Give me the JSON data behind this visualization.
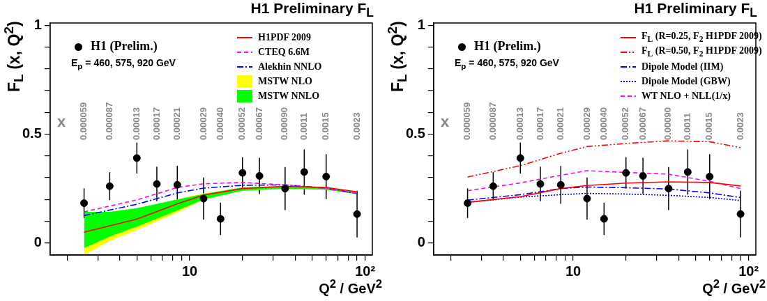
{
  "chart_data": [
    {
      "type": "line",
      "title": "H1 Preliminary F$_{L}$",
      "xlabel": "Q$^{2}$ / GeV$^{2}$",
      "ylabel": "F$_{L}$ (x, Q$^{2}$)",
      "log": "x",
      "legend": "top right",
      "xlim": [
        1.6,
        110
      ],
      "ylim": [
        -0.055,
        1.01
      ],
      "xticks": [
        {
          "value": 2,
          "label": null
        },
        {
          "value": 3,
          "label": null
        },
        {
          "value": 4,
          "label": null
        },
        {
          "value": 5,
          "label": null
        },
        {
          "value": 6,
          "label": null
        },
        {
          "value": 7,
          "label": null
        },
        {
          "value": 8,
          "label": null
        },
        {
          "value": 9,
          "label": null
        },
        10,
        {
          "value": 20,
          "label": null
        },
        {
          "value": 30,
          "label": null
        },
        {
          "value": 40,
          "label": null
        },
        {
          "value": 50,
          "label": null
        },
        {
          "value": 60,
          "label": null
        },
        {
          "value": 70,
          "label": null
        },
        {
          "value": 80,
          "label": null
        },
        {
          "value": 90,
          "label": null
        },
        {
          "value": 100,
          "label": "10²"
        }
      ],
      "yticks": [
        0,
        {
          "value": 0.1,
          "label": null
        },
        {
          "value": 0.2,
          "label": null
        },
        {
          "value": 0.3,
          "label": null
        },
        {
          "value": 0.4,
          "label": null
        },
        0.5,
        {
          "value": 0.6,
          "label": null
        },
        {
          "value": 0.7,
          "label": null
        },
        {
          "value": 0.8,
          "label": null
        },
        {
          "value": 0.9,
          "label": null
        },
        1
      ],
      "series": [
        {
          "name": "H1 (Prelim.)",
          "type": "scatter",
          "marker": "circle",
          "color": "#000000",
          "x": [
            2.5,
            3.5,
            5,
            6.5,
            8.5,
            12,
            15,
            20,
            25,
            35,
            45,
            60,
            90
          ],
          "values": [
            0.183,
            0.261,
            0.39,
            0.271,
            0.267,
            0.204,
            0.111,
            0.322,
            0.308,
            0.25,
            0.326,
            0.305,
            0.133
          ],
          "errors": [
            0.068,
            0.064,
            0.071,
            0.079,
            0.087,
            0.097,
            0.074,
            0.072,
            0.083,
            0.099,
            0.104,
            0.103,
            0.107
          ]
        },
        {
          "name": "H1PDF 2009",
          "type": "line",
          "line_style": "solid",
          "color": "#ff0000",
          "x": [
            2.5,
            5,
            8.5,
            12,
            20,
            35,
            60,
            90
          ],
          "values": [
            0.05,
            0.11,
            0.18,
            0.22,
            0.25,
            0.26,
            0.255,
            0.235
          ]
        },
        {
          "name": "CTEQ 6.6M",
          "type": "line",
          "line_style": "dashed",
          "color": "#ff00ff",
          "x": [
            2.5,
            5,
            8.5,
            12,
            20,
            35,
            60,
            90
          ],
          "values": [
            0.143,
            0.198,
            0.255,
            0.272,
            0.278,
            0.267,
            0.25,
            0.228
          ]
        },
        {
          "name": "Alekhin NNLO",
          "type": "line",
          "line_style": "dashdot",
          "color": "#0000ff",
          "x": [
            2.5,
            5,
            8.5,
            12,
            20,
            35,
            60,
            90
          ],
          "values": [
            0.126,
            0.178,
            0.23,
            0.252,
            0.265,
            0.267,
            0.252,
            0.227
          ]
        },
        {
          "name": "MSTW NLO",
          "type": "area",
          "color": "#ffff00",
          "x": [
            2.5,
            3.5,
            5,
            8.5,
            12,
            20,
            35,
            60,
            90
          ],
          "lower": [
            -0.055,
            0.01,
            0.06,
            0.14,
            0.2,
            0.24,
            0.25,
            0.245,
            0.225
          ],
          "upper": [
            -0.024,
            0.03,
            0.075,
            0.2,
            0.228,
            0.255,
            0.263,
            0.256,
            0.237
          ],
          "values": [
            null,
            null,
            null,
            null,
            null,
            null,
            null,
            null,
            null
          ]
        },
        {
          "name": "MSTW NNLO",
          "type": "area",
          "color": "#00ff00",
          "x": [
            2.5,
            3.5,
            5,
            8.5,
            12,
            20,
            35,
            60,
            90
          ],
          "lower": [
            -0.024,
            0.03,
            0.075,
            0.15,
            0.2,
            0.24,
            0.25,
            0.245,
            0.225
          ],
          "upper": [
            0.143,
            0.143,
            0.16,
            0.2,
            0.225,
            0.255,
            0.262,
            0.255,
            0.235
          ],
          "values": [
            null,
            null,
            null,
            null,
            null,
            null,
            null,
            null,
            null
          ]
        }
      ],
      "annotations": [
        "x",
        "E$_{p}$ = 460, 575, 920 GeV",
        "0.000059",
        "0.000087",
        "0.00013",
        "0.00017",
        "0.00021",
        "0.00029",
        "0.00040",
        "0.00052",
        "0.00067",
        "0.00090",
        "0.0011",
        "0.0015",
        "0.0023"
      ]
    },
    {
      "type": "line",
      "title": "H1 Preliminary F$_{L}$",
      "xlabel": "Q$^{2}$ / GeV$^{2}$",
      "ylabel": "F$_{L}$ (x, Q$^{2}$)",
      "log": "x",
      "legend": "top right",
      "xlim": [
        1.6,
        110
      ],
      "ylim": [
        -0.055,
        1.01
      ],
      "xticks": [
        {
          "value": 2,
          "label": null
        },
        {
          "value": 3,
          "label": null
        },
        {
          "value": 4,
          "label": null
        },
        {
          "value": 5,
          "label": null
        },
        {
          "value": 6,
          "label": null
        },
        {
          "value": 7,
          "label": null
        },
        {
          "value": 8,
          "label": null
        },
        {
          "value": 9,
          "label": null
        },
        10,
        {
          "value": 20,
          "label": null
        },
        {
          "value": 30,
          "label": null
        },
        {
          "value": 40,
          "label": null
        },
        {
          "value": 50,
          "label": null
        },
        {
          "value": 60,
          "label": null
        },
        {
          "value": 70,
          "label": null
        },
        {
          "value": 80,
          "label": null
        },
        {
          "value": 90,
          "label": null
        },
        {
          "value": 100,
          "label": "10²"
        }
      ],
      "yticks": [
        0,
        {
          "value": 0.1,
          "label": null
        },
        {
          "value": 0.2,
          "label": null
        },
        {
          "value": 0.3,
          "label": null
        },
        {
          "value": 0.4,
          "label": null
        },
        0.5,
        {
          "value": 0.6,
          "label": null
        },
        {
          "value": 0.7,
          "label": null
        },
        {
          "value": 0.8,
          "label": null
        },
        {
          "value": 0.9,
          "label": null
        },
        1
      ],
      "series": [
        {
          "name": "H1 (Prelim.)",
          "type": "scatter",
          "marker": "circle",
          "color": "#000000",
          "x": [
            2.5,
            3.5,
            5,
            6.5,
            8.5,
            12,
            15,
            20,
            25,
            35,
            45,
            60,
            90
          ],
          "values": [
            0.183,
            0.261,
            0.39,
            0.271,
            0.267,
            0.204,
            0.111,
            0.322,
            0.308,
            0.25,
            0.326,
            0.305,
            0.133
          ],
          "errors": [
            0.068,
            0.064,
            0.071,
            0.079,
            0.087,
            0.097,
            0.074,
            0.072,
            0.083,
            0.099,
            0.104,
            0.103,
            0.107
          ]
        },
        {
          "name": "F$_{L}$ (R=0.25, F$_{2}$ H1PDF 2009)",
          "type": "line",
          "line_style": "solid",
          "color": "#ff0000",
          "x": [
            2.5,
            5,
            8.5,
            12,
            20,
            35,
            60,
            90
          ],
          "values": [
            0.187,
            0.213,
            0.25,
            0.264,
            0.275,
            0.281,
            0.278,
            0.262
          ]
        },
        {
          "name": "F$_{L}$ (R=0.50, F$_{2}$ H1PDF 2009)",
          "type": "line",
          "line_style": "dashdotdot",
          "color": "#ff0000",
          "x": [
            2.5,
            5,
            8.5,
            12,
            20,
            35,
            60,
            90
          ],
          "values": [
            0.303,
            0.355,
            0.412,
            0.443,
            0.457,
            0.469,
            0.465,
            0.438
          ]
        },
        {
          "name": "Dipole Model (IIM)",
          "type": "line",
          "line_style": "dashdot",
          "color": "#0000ff",
          "x": [
            2.5,
            5,
            8.5,
            12,
            20,
            35,
            60,
            90
          ],
          "values": [
            0.197,
            0.222,
            0.25,
            0.257,
            0.254,
            0.248,
            0.23,
            0.209
          ]
        },
        {
          "name": "Dipole Model (GBW)",
          "type": "line",
          "line_style": "dotted",
          "color": "#0000ff",
          "x": [
            2.5,
            5,
            8.5,
            12,
            20,
            35,
            60,
            90
          ],
          "values": [
            0.187,
            0.211,
            0.222,
            0.228,
            0.225,
            0.219,
            0.209,
            0.195
          ]
        },
        {
          "name": "WT NLO + NLL(1/x)",
          "type": "line",
          "line_style": "dashed",
          "color": "#ff00ff",
          "x": [
            2.5,
            5,
            8.5,
            12,
            20,
            35,
            60,
            90
          ],
          "values": [
            0.24,
            0.276,
            0.311,
            0.332,
            0.324,
            0.316,
            0.283,
            0.25
          ]
        }
      ],
      "annotations": [
        "x",
        "E$_{p}$ = 460, 575, 920 GeV",
        "0.000059",
        "0.000087",
        "0.00013",
        "0.00017",
        "0.00021",
        "0.00029",
        "0.00040",
        "0.00052",
        "0.00067",
        "0.00090",
        "0.0011",
        "0.0015",
        "0.0023"
      ]
    }
  ]
}
